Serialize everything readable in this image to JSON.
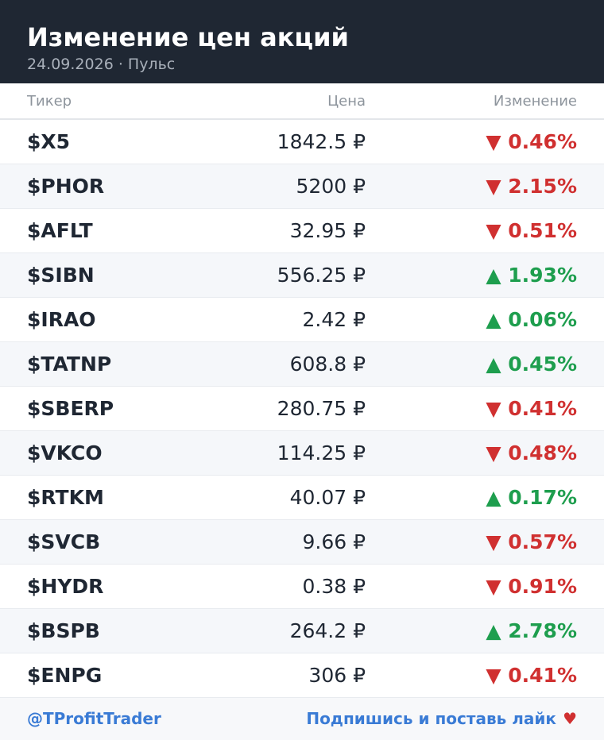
{
  "header": {
    "title": "Изменение цен акций",
    "subtitle": "24.09.2026 · Пульс"
  },
  "table": {
    "columns": [
      "Тикер",
      "Цена",
      "Изменение"
    ],
    "rows": [
      [
        "$X5",
        "1842.5 ₽",
        "▼ 0.46%"
      ],
      [
        "$PHOR",
        "5200 ₽",
        "▼ 2.15%"
      ],
      [
        "$AFLT",
        "32.95 ₽",
        "▼ 0.51%"
      ],
      [
        "$SIBN",
        "556.25 ₽",
        "▲ 1.93%"
      ],
      [
        "$IRAO",
        "2.42 ₽",
        "▲ 0.06%"
      ],
      [
        "$TATNP",
        "608.8 ₽",
        "▲ 0.45%"
      ],
      [
        "$SBERP",
        "280.75 ₽",
        "▼ 0.41%"
      ],
      [
        "$VKCO",
        "114.25 ₽",
        "▼ 0.48%"
      ],
      [
        "$RTKM",
        "40.07 ₽",
        "▲ 0.17%"
      ],
      [
        "$SVCB",
        "9.66 ₽",
        "▼ 0.57%"
      ],
      [
        "$HYDR",
        "0.38 ₽",
        "▼ 0.91%"
      ],
      [
        "$BSPB",
        "264.2 ₽",
        "▲ 2.78%"
      ],
      [
        "$ENPG",
        "306 ₽",
        "▼ 0.41%"
      ]
    ]
  },
  "footer": {
    "handle": "@TProfitTrader",
    "cta": "Подпишись и поставь лайк",
    "heart": "♥"
  }
}
